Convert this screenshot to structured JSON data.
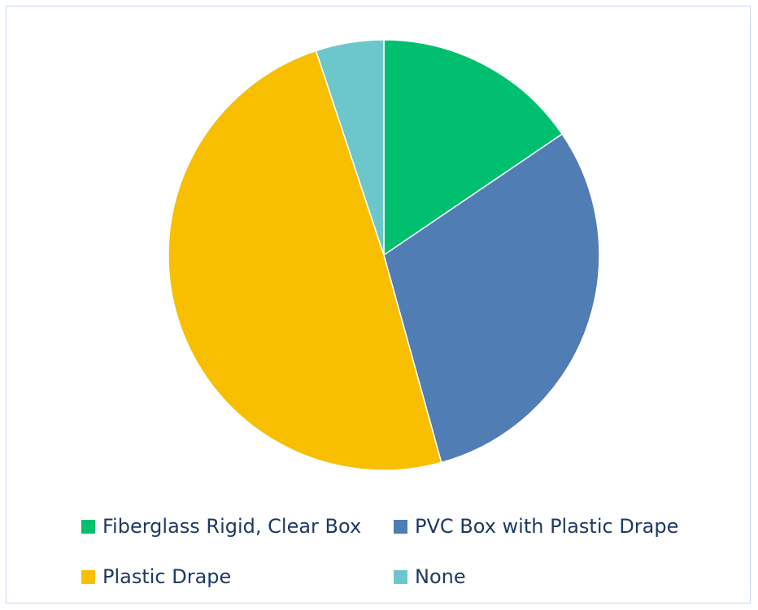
{
  "chart_data": {
    "type": "pie",
    "title": "",
    "slices": [
      {
        "label": "Fiberglass Rigid, Clear Box",
        "value": 15.5,
        "color": "#00c06f"
      },
      {
        "label": "PVC Box with Plastic Drape",
        "value": 30.2,
        "color": "#4f7db4"
      },
      {
        "label": "Plastic Drape",
        "value": 49.2,
        "color": "#f7bf00"
      },
      {
        "label": "None",
        "value": 5.1,
        "color": "#6cc7cc"
      }
    ],
    "start_angle": "top (12 o'clock), clockwise",
    "legend_position": "bottom"
  }
}
